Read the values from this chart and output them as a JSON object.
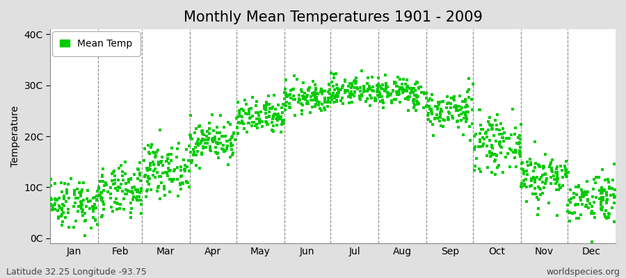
{
  "title": "Monthly Mean Temperatures 1901 - 2009",
  "ylabel": "Temperature",
  "xlabel_labels": [
    "Jan",
    "Feb",
    "Mar",
    "Apr",
    "May",
    "Jun",
    "Jul",
    "Aug",
    "Sep",
    "Oct",
    "Nov",
    "Dec"
  ],
  "footer_left": "Latitude 32.25 Longitude -93.75",
  "footer_right": "worldspecies.org",
  "legend_label": "Mean Temp",
  "marker_color": "#00CC00",
  "figure_bg_color": "#E0E0E0",
  "plot_bg_color": "#FFFFFF",
  "ytick_labels": [
    "0C",
    "10C",
    "20C",
    "30C",
    "40C"
  ],
  "ytick_values": [
    0,
    10,
    20,
    30,
    40
  ],
  "ylim": [
    -1,
    41
  ],
  "monthly_means": [
    7.0,
    9.0,
    13.5,
    19.0,
    23.5,
    27.5,
    29.0,
    28.5,
    25.0,
    18.5,
    12.0,
    8.0
  ],
  "monthly_stds": [
    2.5,
    2.5,
    2.5,
    2.0,
    1.8,
    1.5,
    1.5,
    1.5,
    2.0,
    2.5,
    2.5,
    2.5
  ],
  "n_years": 109,
  "title_fontsize": 15,
  "axis_fontsize": 10,
  "tick_fontsize": 10,
  "footer_fontsize": 9,
  "marker_size": 5
}
